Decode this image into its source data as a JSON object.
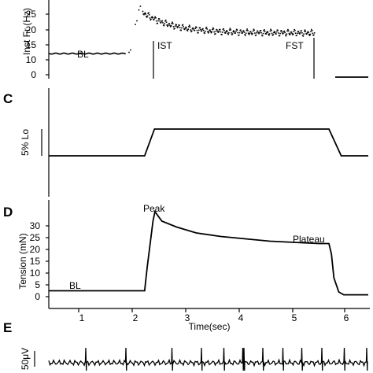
{
  "panels": {
    "b": {
      "ylabel": "Inst Fr (Hz)",
      "yticks": [
        "10",
        "15",
        "20",
        "25",
        "0"
      ],
      "annotations": {
        "bl": "BL",
        "ist": "IST",
        "fst": "FST"
      }
    },
    "c": {
      "letter": "C",
      "scale_label": "5% Lo"
    },
    "d": {
      "letter": "D",
      "ylabel": "Tension (mN)",
      "yticks": [
        "30",
        "25",
        "20",
        "15",
        "10",
        "5",
        "0"
      ],
      "annotations": {
        "peak": "Peak",
        "plateau": "Plateau",
        "bl": "BL"
      }
    },
    "time_axis": {
      "xlabel": "Time(sec)",
      "xticks": [
        "1",
        "2",
        "3",
        "4",
        "5",
        "6"
      ]
    },
    "e": {
      "letter": "E",
      "scale_label": "50μV"
    }
  },
  "chart_data": [
    {
      "type": "scatter",
      "panel": "B",
      "ylabel": "Inst Fr (Hz)",
      "ylim": [
        0,
        27
      ],
      "xlim": [
        0,
        6.5
      ],
      "segments": [
        {
          "name": "BL",
          "x_start": 0.0,
          "x_end": 1.55,
          "y": 9
        },
        {
          "name": "stim",
          "x_start": 1.9,
          "x_end": 5.4,
          "y_start": 26,
          "y_tau": 0.6,
          "y_plateau": 17.5
        }
      ],
      "markers": [
        {
          "name": "IST",
          "x": 2.35
        },
        {
          "name": "FST",
          "x": 5.35
        }
      ]
    },
    {
      "type": "line",
      "panel": "C",
      "x": [
        0.0,
        1.95,
        2.15,
        5.7,
        5.95,
        6.5
      ],
      "y": [
        0,
        0,
        5,
        5,
        0,
        0
      ]
    },
    {
      "type": "line",
      "panel": "D",
      "ylabel": "Tension (mN)",
      "xlabel": "Time(sec)",
      "ylim": [
        0,
        35
      ],
      "xlim": [
        0,
        6.5
      ],
      "x": [
        0.0,
        1.95,
        2.0,
        2.12,
        2.16,
        2.3,
        2.6,
        3.0,
        3.5,
        4.0,
        4.5,
        5.0,
        5.5,
        5.7,
        5.75,
        5.8,
        5.9,
        6.0,
        6.5
      ],
      "y": [
        2.5,
        2.5,
        12,
        32,
        36,
        32,
        29.5,
        27,
        25.5,
        24.5,
        23.5,
        23,
        22.5,
        22.5,
        18,
        8,
        2,
        0.8,
        0.8
      ],
      "annotations": [
        "Peak",
        "Plateau",
        "BL"
      ]
    },
    {
      "type": "line",
      "panel": "E",
      "scale": "50μV",
      "spike_times": [
        0.75,
        1.55,
        2.5,
        3.1,
        3.55,
        3.95,
        4.35,
        4.75,
        5.15,
        5.55,
        6.0,
        6.45
      ]
    }
  ]
}
